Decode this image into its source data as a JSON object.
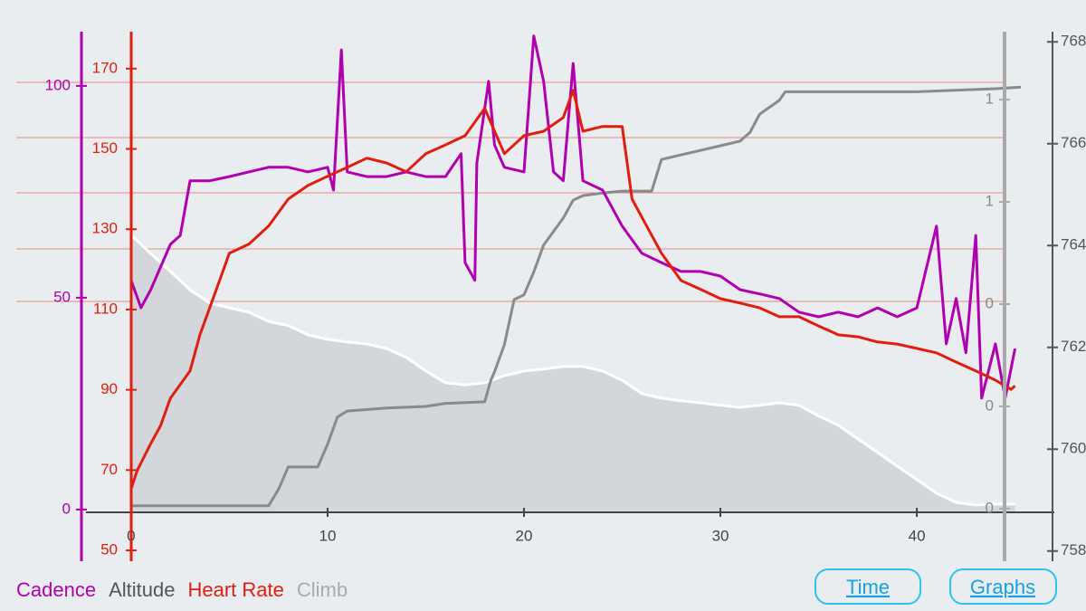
{
  "chart_data": {
    "type": "line",
    "xlim": [
      -2.3,
      47
    ],
    "xticks": [
      0,
      10,
      20,
      30,
      40
    ],
    "series": [
      {
        "name": "Cadence",
        "color": "#b000b0",
        "ylim": [
          -12.2,
          112.8
        ],
        "yticks": [
          0,
          50,
          100
        ],
        "x": [
          0,
          0.5,
          1,
          2,
          2.5,
          3,
          4,
          5,
          6,
          7,
          8,
          9,
          10,
          10.3,
          10.7,
          11,
          12,
          13,
          14,
          15,
          16,
          16.8,
          17,
          17.5,
          17.6,
          18.2,
          18.5,
          19,
          20,
          20.5,
          21,
          21.5,
          22,
          22.5,
          23,
          24,
          25,
          26,
          27,
          28,
          29,
          30,
          31,
          32,
          33,
          34,
          35,
          36,
          37,
          38,
          39,
          40,
          41,
          41.5,
          42,
          42.5,
          43,
          43.3,
          44,
          44.5,
          45
        ],
        "values": [
          54.1,
          47.6,
          51.9,
          62.6,
          64.7,
          77.6,
          77.6,
          78.6,
          79.7,
          80.8,
          80.8,
          79.7,
          80.8,
          75.4,
          108.5,
          79.7,
          78.6,
          78.6,
          79.7,
          78.6,
          78.6,
          84,
          58.3,
          54.1,
          81.8,
          101.1,
          86.1,
          80.8,
          79.7,
          111.8,
          101.1,
          79.7,
          77.6,
          105.3,
          77.6,
          75.4,
          66.9,
          60.5,
          58.3,
          56.2,
          56.2,
          55.1,
          51.9,
          50.9,
          49.8,
          46.6,
          45.5,
          46.6,
          45.5,
          47.6,
          45.5,
          47.6,
          66.9,
          39.1,
          49.8,
          37,
          64.7,
          26.3,
          39.1,
          26.3,
          38
        ]
      },
      {
        "name": "Altitude",
        "color": "#8a8a8a",
        "ylim": [
          757.8,
          768.2
        ],
        "yticks": [
          758,
          760,
          762,
          764,
          766,
          768
        ],
        "x": [
          0,
          7,
          7.5,
          8,
          9.5,
          10,
          10.5,
          11,
          13,
          15,
          16,
          18,
          18.3,
          18.5,
          19,
          19.5,
          20,
          20.5,
          21,
          22,
          22.5,
          23,
          24,
          25,
          26.5,
          27,
          28,
          29,
          30,
          31,
          31.5,
          32,
          33,
          33.3,
          40,
          44,
          45.3
        ],
        "values": [
          758.89,
          758.89,
          759.21,
          759.65,
          759.65,
          760.1,
          760.63,
          760.75,
          760.81,
          760.84,
          760.9,
          760.93,
          761.34,
          761.52,
          762.05,
          762.94,
          763.03,
          763.48,
          764.01,
          764.54,
          764.89,
          764.98,
          765.03,
          765.07,
          765.07,
          765.69,
          765.78,
          765.87,
          765.96,
          766.05,
          766.22,
          766.58,
          766.85,
          767.02,
          767.02,
          767.08,
          767.11
        ]
      },
      {
        "name": "Heart Rate",
        "color": "#e01e10",
        "ylim": [
          47.3,
          179.2
        ],
        "yticks": [
          50,
          70,
          90,
          110,
          130,
          150,
          170
        ],
        "x": [
          0,
          0.3,
          1,
          1.5,
          2,
          3,
          3.5,
          4,
          4.5,
          5,
          6,
          7,
          8,
          9,
          10,
          11,
          12,
          13,
          14,
          15,
          16,
          17,
          18,
          19,
          20,
          21,
          22,
          22.5,
          23,
          24,
          25,
          25.5,
          26,
          27,
          28,
          29,
          30,
          31,
          32,
          33,
          34,
          35,
          36,
          37,
          38,
          39,
          40,
          41,
          42,
          43,
          44,
          44.8,
          45
        ],
        "values": [
          65.3,
          69.8,
          76.6,
          81.1,
          87.9,
          94.7,
          103.7,
          110.4,
          117.2,
          124,
          126.3,
          130.8,
          137.5,
          140.9,
          143.2,
          145.4,
          147.7,
          146.5,
          144.3,
          148.8,
          151,
          153.3,
          160.1,
          148.8,
          153.3,
          154.4,
          157.8,
          164.6,
          154.4,
          155.6,
          155.6,
          137.5,
          133,
          124,
          117.2,
          115,
          112.7,
          111.6,
          110.4,
          108.2,
          108.2,
          105.9,
          103.7,
          103.2,
          101.9,
          101.4,
          100.3,
          99.2,
          96.9,
          94.7,
          92.4,
          90.1,
          91
        ]
      },
      {
        "name": "Climb",
        "color": "#ffffff",
        "ylim": [
          -0.103,
          0.933
        ],
        "yticks": [
          {
            "value": 0,
            "label": "0"
          },
          {
            "value": 0.2,
            "label": "0"
          },
          {
            "value": 0.4,
            "label": "0"
          },
          {
            "value": 0.6,
            "label": "1"
          },
          {
            "value": 0.8,
            "label": "1"
          }
        ],
        "x": [
          0,
          1,
          2,
          3,
          4,
          5,
          6,
          7,
          8,
          9,
          10,
          11,
          12,
          13,
          14,
          15,
          16,
          17,
          18,
          19,
          20,
          21,
          22,
          23,
          24,
          25,
          26,
          27,
          28,
          29,
          30,
          31,
          32,
          33,
          34,
          35,
          36,
          37,
          38,
          39,
          40,
          41,
          42,
          43,
          44,
          45
        ],
        "values": [
          0.535,
          0.499,
          0.464,
          0.428,
          0.402,
          0.393,
          0.384,
          0.366,
          0.358,
          0.34,
          0.331,
          0.326,
          0.322,
          0.313,
          0.296,
          0.269,
          0.246,
          0.242,
          0.246,
          0.26,
          0.269,
          0.273,
          0.278,
          0.278,
          0.269,
          0.251,
          0.225,
          0.216,
          0.211,
          0.207,
          0.202,
          0.198,
          0.202,
          0.207,
          0.202,
          0.181,
          0.163,
          0.136,
          0.11,
          0.083,
          0.057,
          0.03,
          0.012,
          0.007,
          0.009,
          0.009
        ]
      }
    ]
  },
  "buttons": [
    "Time",
    "Graphs"
  ]
}
